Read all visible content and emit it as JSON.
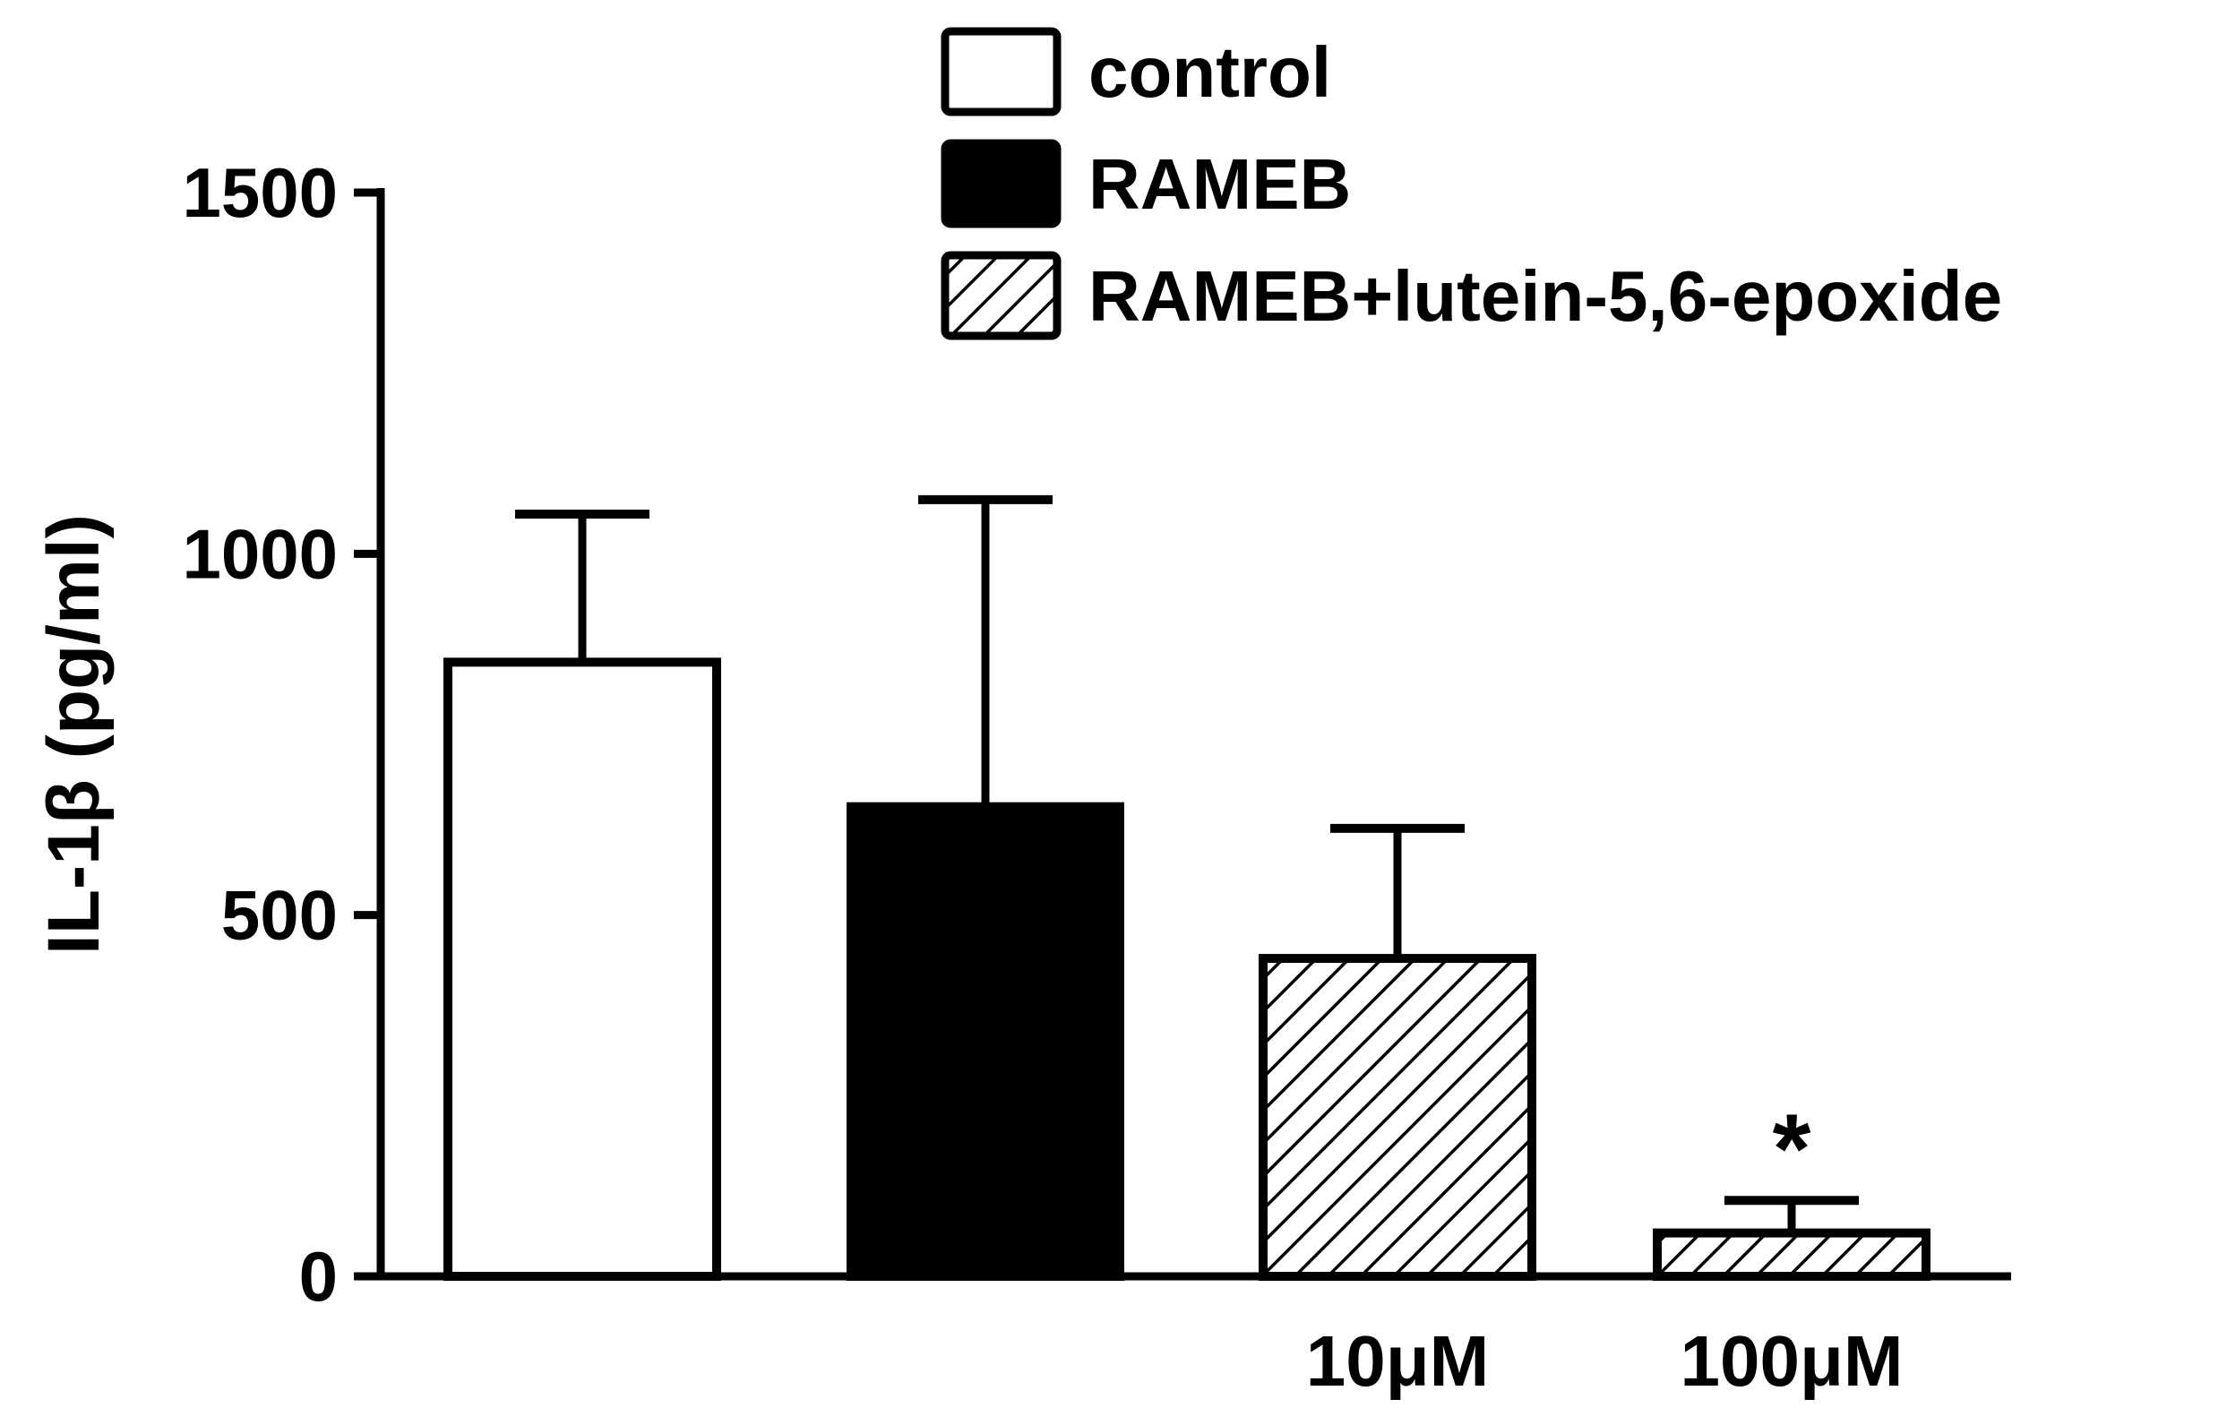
{
  "chart_data": {
    "type": "bar",
    "title": "",
    "ylabel": "IL-1β (pg/ml)",
    "xlabel": "",
    "ylim": [
      0,
      1500
    ],
    "yticks": [
      0,
      500,
      1000,
      1500
    ],
    "categories": [
      "",
      "",
      "10μM",
      "100μM"
    ],
    "bars": [
      {
        "group": "control",
        "value": 850,
        "error": 205
      },
      {
        "group": "RAMEB",
        "value": 650,
        "error": 425
      },
      {
        "group": "RAMEB+lutein-5,6-epoxide",
        "value": 440,
        "error": 180
      },
      {
        "group": "RAMEB+lutein-5,6-epoxide",
        "value": 60,
        "error": 45,
        "annotation": "*"
      }
    ],
    "legend": {
      "placement": "top-right",
      "entries": [
        {
          "label": "control",
          "fill": "white"
        },
        {
          "label": "RAMEB",
          "fill": "black"
        },
        {
          "label": "RAMEB+lutein-5,6-epoxide",
          "fill": "hatched"
        }
      ]
    },
    "grid": false,
    "colors": {
      "axis": "#000000",
      "bar_edge": "#000000",
      "background": "#ffffff"
    }
  }
}
